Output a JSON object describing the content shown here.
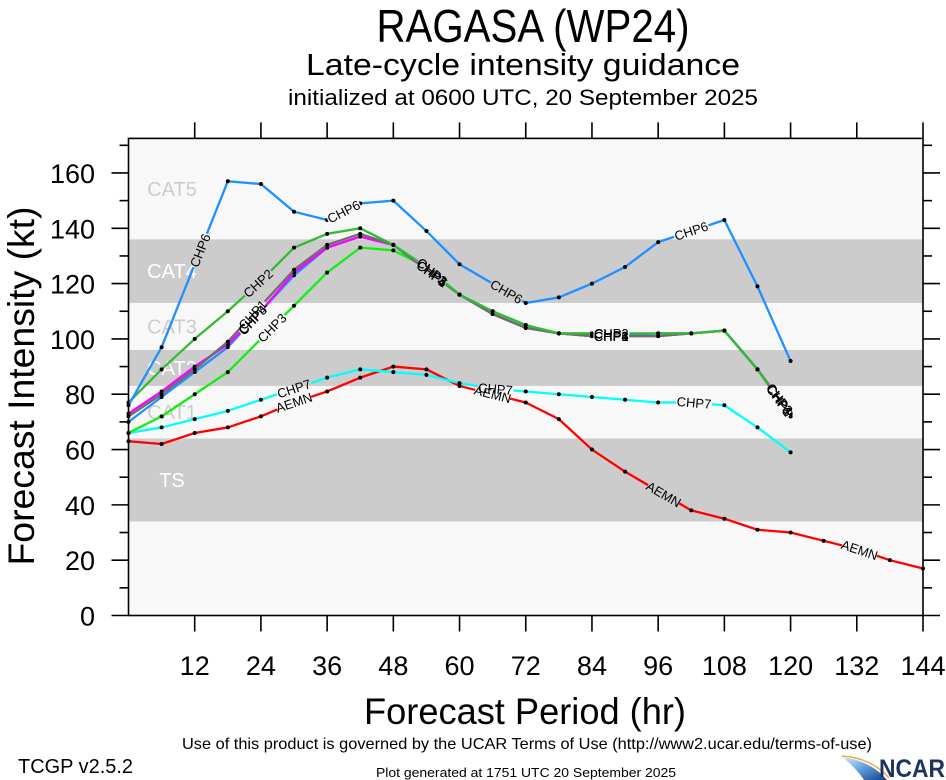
{
  "header": {
    "title": "RAGASA (WP24)",
    "subtitle": "Late-cycle intensity guidance",
    "init_line": "initialized at 0600 UTC, 20 September 2025"
  },
  "footer": {
    "terms": "Use of this product is governed by the UCAR Terms of Use (http://www2.ucar.edu/terms-of-use)",
    "version": "TCGP v2.5.2",
    "generated": "Plot generated at 1751 UTC   20 September 2025",
    "logo_text": "NCAR"
  },
  "chart_data": {
    "type": "line",
    "title": "RAGASA (WP24)",
    "subtitle": "Late-cycle intensity guidance",
    "xlabel": "Forecast Period (hr)",
    "ylabel": "Forecast Intensity (kt)",
    "xlim": [
      0,
      144
    ],
    "ylim": [
      0,
      172.5
    ],
    "x_ticks": [
      12,
      24,
      36,
      48,
      60,
      72,
      84,
      96,
      108,
      120,
      132,
      144
    ],
    "y_ticks": [
      0,
      20,
      40,
      60,
      80,
      100,
      120,
      140,
      160
    ],
    "y_minor_step": 10,
    "grid": false,
    "legend": "none (inline line labels)",
    "colors": {
      "plot_background": "#f8f8f8",
      "band_shaded": "#cccccc",
      "band_label_light": "#cccccc",
      "band_label_dark": "#ffffff",
      "point_marker": "#000000",
      "logo_text": "#1c355e"
    },
    "bands": [
      {
        "label": "TS",
        "min_kt": 34,
        "max_kt": 64,
        "shaded": true
      },
      {
        "label": "CAT1",
        "min_kt": 64,
        "max_kt": 83,
        "shaded": false
      },
      {
        "label": "CAT2",
        "min_kt": 83,
        "max_kt": 96,
        "shaded": true
      },
      {
        "label": "CAT3",
        "min_kt": 96,
        "max_kt": 113,
        "shaded": false
      },
      {
        "label": "CAT4",
        "min_kt": 113,
        "max_kt": 136,
        "shaded": true
      },
      {
        "label": "CAT5",
        "min_kt": 136,
        "max_kt": null,
        "shaded": false
      }
    ],
    "series": [
      {
        "name": "AEMN",
        "color": "#ff0000",
        "hours": [
          0,
          6,
          12,
          18,
          24,
          30,
          36,
          42,
          48,
          54,
          60,
          66,
          72,
          78,
          84,
          90,
          96,
          102,
          108,
          114,
          120,
          126,
          132,
          138,
          144
        ],
        "values": [
          63,
          62,
          66,
          68,
          72,
          77,
          81,
          86,
          90,
          89,
          83,
          80,
          77,
          71,
          60,
          52,
          45,
          38,
          35,
          31,
          30,
          27,
          24,
          20,
          17
        ]
      },
      {
        "name": "CHP7",
        "color": "#00ffff",
        "hours": [
          0,
          6,
          12,
          18,
          24,
          30,
          36,
          42,
          48,
          54,
          60,
          66,
          72,
          78,
          84,
          90,
          96,
          102,
          108,
          114,
          120
        ],
        "values": [
          66,
          68,
          71,
          74,
          78,
          82,
          86,
          89,
          88,
          87,
          84,
          82,
          81,
          80,
          79,
          78,
          77,
          77,
          76,
          68,
          59
        ]
      },
      {
        "name": "CHP3",
        "color": "#11ee11",
        "hours": [
          0,
          6,
          12,
          18,
          24,
          30,
          36,
          42,
          48,
          54,
          60,
          66,
          72,
          78,
          84,
          90,
          96,
          102,
          108,
          114,
          120
        ],
        "values": [
          66,
          72,
          80,
          88,
          100,
          112,
          124,
          133,
          132,
          126,
          116,
          110,
          105,
          102,
          102,
          101,
          102,
          102,
          103,
          89,
          73
        ]
      },
      {
        "name": "CHP5",
        "color": "#1e90ff",
        "hours": [
          0,
          6,
          12,
          18,
          24,
          30,
          36,
          42,
          48,
          54,
          60,
          66,
          72,
          78,
          84,
          90,
          96,
          102,
          108,
          114,
          120
        ],
        "values": [
          70,
          79,
          88,
          97,
          110,
          123,
          133,
          137,
          134,
          125,
          116,
          109,
          104,
          102,
          101,
          101,
          102,
          102,
          103,
          89,
          72
        ]
      },
      {
        "name": "CHP4",
        "color": "#ff00ff",
        "hours": [
          0,
          6,
          12,
          18,
          24,
          30,
          36,
          42,
          48,
          54,
          60,
          66,
          72,
          78,
          84,
          90,
          96,
          102,
          108,
          114,
          120
        ],
        "values": [
          73,
          81,
          90,
          98,
          110,
          124,
          133,
          137,
          134,
          125,
          116,
          109,
          104,
          102,
          101,
          101,
          101,
          102,
          103,
          89,
          73
        ]
      },
      {
        "name": "CHP1",
        "color": "#6e6e6e",
        "hours": [
          0,
          6,
          12,
          18,
          24,
          30,
          36,
          42,
          48,
          54,
          60,
          66,
          72,
          78,
          84,
          90,
          96,
          102,
          108,
          114,
          120
        ],
        "values": [
          72,
          80,
          89,
          99,
          112,
          125,
          134,
          138,
          134,
          125,
          116,
          109,
          104,
          102,
          101,
          101,
          101,
          102,
          103,
          89,
          72
        ]
      },
      {
        "name": "CHP2",
        "color": "#33bb33",
        "hours": [
          0,
          6,
          12,
          18,
          24,
          30,
          36,
          42,
          48,
          54,
          60,
          66,
          72,
          78,
          84,
          90,
          96,
          102,
          108,
          114,
          120
        ],
        "values": [
          77,
          89,
          100,
          110,
          121,
          133,
          138,
          140,
          134,
          126,
          116,
          110,
          105,
          102,
          102,
          102,
          102,
          102,
          103,
          89,
          73
        ]
      },
      {
        "name": "CHP6",
        "color": "#1e90ff",
        "hours": [
          0,
          6,
          12,
          18,
          24,
          30,
          36,
          42,
          48,
          54,
          60,
          66,
          72,
          78,
          84,
          90,
          96,
          102,
          108,
          114,
          120
        ],
        "values": [
          76,
          97,
          127,
          157,
          156,
          146,
          143,
          149,
          150,
          139,
          127,
          120,
          113,
          115,
          120,
          126,
          135,
          139,
          143,
          119,
          92
        ]
      }
    ]
  }
}
